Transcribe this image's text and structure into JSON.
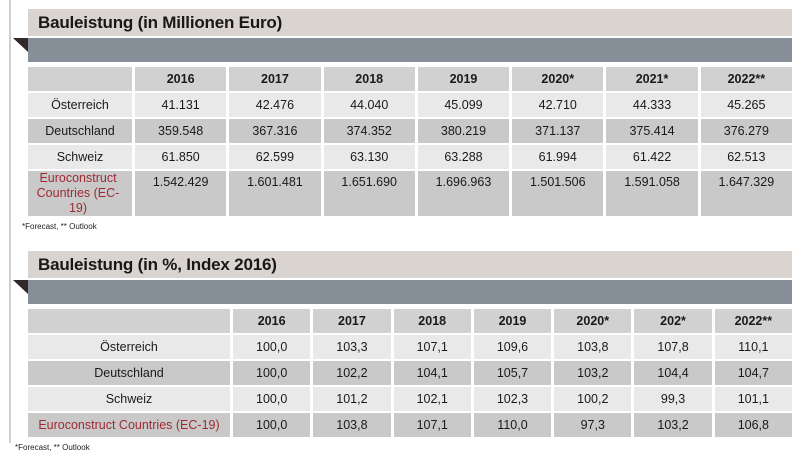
{
  "colors": {
    "title-bar-bg": "#d9d4cf",
    "dark-bar-bg": "#868e97",
    "header-cell-bg": "#d1d1d2",
    "row-light-bg": "#e9e9e9",
    "row-dark-bg": "#c9c9ca",
    "accent-red": "#9e2a33",
    "triangle": "#32282a",
    "text": "#1a1a1a"
  },
  "chart_data": [
    {
      "type": "table",
      "title": "Bauleistung (in Millionen Euro)",
      "columns": [
        "",
        "2016",
        "2017",
        "2018",
        "2019",
        "2020*",
        "2021*",
        "2022**"
      ],
      "rows": [
        {
          "label": "Österreich",
          "values": [
            "41.131",
            "42.476",
            "44.040",
            "45.099",
            "42.710",
            "44.333",
            "45.265"
          ],
          "highlight": false
        },
        {
          "label": "Deutschland",
          "values": [
            "359.548",
            "367.316",
            "374.352",
            "380.219",
            "371.137",
            "375.414",
            "376.279"
          ],
          "highlight": false
        },
        {
          "label": "Schweiz",
          "values": [
            "61.850",
            "62.599",
            "63.130",
            "63.288",
            "61.994",
            "61.422",
            "62.513"
          ],
          "highlight": false
        },
        {
          "label": "Euroconstruct Countries (EC-19)",
          "values": [
            "1.542.429",
            "1.601.481",
            "1.651.690",
            "1.696.963",
            "1.501.506",
            "1.591.058",
            "1.647.329"
          ],
          "highlight": true
        }
      ],
      "footnote": "*Forecast, ** Outlook"
    },
    {
      "type": "table",
      "title": "Bauleistung (in %, Index 2016)",
      "columns": [
        "",
        "2016",
        "2017",
        "2018",
        "2019",
        "2020*",
        "202*",
        "2022**"
      ],
      "rows": [
        {
          "label": "Österreich",
          "values": [
            "100,0",
            "103,3",
            "107,1",
            "109,6",
            "103,8",
            "107,8",
            "110,1"
          ],
          "highlight": false
        },
        {
          "label": "Deutschland",
          "values": [
            "100,0",
            "102,2",
            "104,1",
            "105,7",
            "103,2",
            "104,4",
            "104,7"
          ],
          "highlight": false
        },
        {
          "label": "Schweiz",
          "values": [
            "100,0",
            "101,2",
            "102,1",
            "102,3",
            "100,2",
            "99,3",
            "101,1"
          ],
          "highlight": false
        },
        {
          "label": "Euroconstruct Countries (EC-19)",
          "values": [
            "100,0",
            "103,8",
            "107,1",
            "110,0",
            "97,3",
            "103,2",
            "106,8"
          ],
          "highlight": true
        }
      ],
      "footnote": "*Forecast, ** Outlook"
    }
  ]
}
